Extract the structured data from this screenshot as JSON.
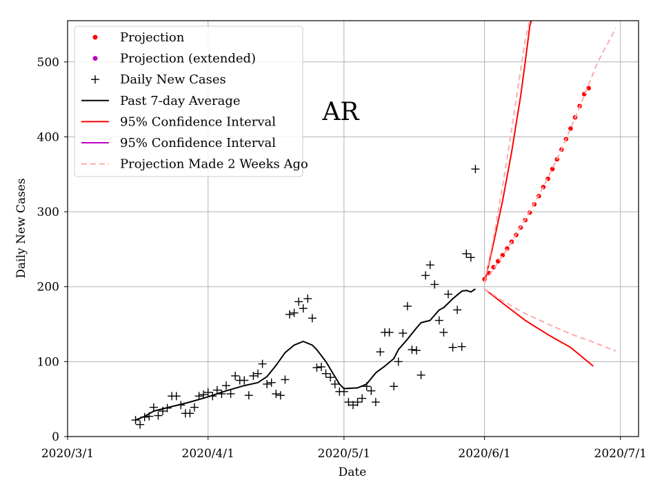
{
  "chart_data": {
    "type": "line",
    "annotation": "AR",
    "xlabel": "Date",
    "ylabel": "Daily New Cases",
    "x_ticks": [
      "2020/3/1",
      "2020/4/1",
      "2020/5/1",
      "2020/6/1",
      "2020/7/1"
    ],
    "y_ticks": [
      0,
      100,
      200,
      300,
      400,
      500
    ],
    "xlim": [
      "2020-03-01",
      "2020-07-05"
    ],
    "ylim": [
      0,
      555
    ],
    "grid": true,
    "legend_position": "top-left",
    "legend": [
      {
        "label": "Projection",
        "marker": "dot",
        "color": "#ff0000"
      },
      {
        "label": "Projection (extended)",
        "marker": "dot",
        "color": "#bf00bf"
      },
      {
        "label": "Daily New Cases",
        "marker": "plus",
        "color": "#000000"
      },
      {
        "label": "Past 7-day Average",
        "marker": "line",
        "color": "#000000"
      },
      {
        "label": "95% Confidence Interval",
        "marker": "line",
        "color": "#ff0000"
      },
      {
        "label": "95% Confidence Interval",
        "marker": "line",
        "color": "#bf00bf"
      },
      {
        "label": "Projection Made 2 Weeks Ago",
        "marker": "dashed",
        "color": "#ffaaaa"
      }
    ],
    "series": [
      {
        "name": "Daily New Cases",
        "style": "plus",
        "color": "#000000",
        "points": [
          [
            "2020-03-16",
            22
          ],
          [
            "2020-03-17",
            16
          ],
          [
            "2020-03-18",
            26
          ],
          [
            "2020-03-19",
            27
          ],
          [
            "2020-03-20",
            39
          ],
          [
            "2020-03-21",
            28
          ],
          [
            "2020-03-22",
            34
          ],
          [
            "2020-03-23",
            38
          ],
          [
            "2020-03-24",
            54
          ],
          [
            "2020-03-25",
            54
          ],
          [
            "2020-03-26",
            42
          ],
          [
            "2020-03-27",
            31
          ],
          [
            "2020-03-28",
            31
          ],
          [
            "2020-03-29",
            39
          ],
          [
            "2020-03-30",
            54
          ],
          [
            "2020-03-31",
            56
          ],
          [
            "2020-04-01",
            59
          ],
          [
            "2020-04-02",
            54
          ],
          [
            "2020-04-03",
            62
          ],
          [
            "2020-04-04",
            57
          ],
          [
            "2020-04-05",
            68
          ],
          [
            "2020-04-06",
            57
          ],
          [
            "2020-04-07",
            81
          ],
          [
            "2020-04-08",
            75
          ],
          [
            "2020-04-09",
            75
          ],
          [
            "2020-04-10",
            55
          ],
          [
            "2020-04-11",
            81
          ],
          [
            "2020-04-12",
            84
          ],
          [
            "2020-04-13",
            97
          ],
          [
            "2020-04-14",
            70
          ],
          [
            "2020-04-15",
            72
          ],
          [
            "2020-04-16",
            57
          ],
          [
            "2020-04-17",
            55
          ],
          [
            "2020-04-18",
            76
          ],
          [
            "2020-04-19",
            163
          ],
          [
            "2020-04-20",
            165
          ],
          [
            "2020-04-21",
            180
          ],
          [
            "2020-04-22",
            171
          ],
          [
            "2020-04-23",
            184
          ],
          [
            "2020-04-24",
            158
          ],
          [
            "2020-04-25",
            92
          ],
          [
            "2020-04-26",
            93
          ],
          [
            "2020-04-27",
            84
          ],
          [
            "2020-04-28",
            79
          ],
          [
            "2020-04-29",
            70
          ],
          [
            "2020-04-30",
            60
          ],
          [
            "2020-05-01",
            60
          ],
          [
            "2020-05-02",
            46
          ],
          [
            "2020-05-03",
            42
          ],
          [
            "2020-05-04",
            46
          ],
          [
            "2020-05-05",
            51
          ],
          [
            "2020-05-06",
            67
          ],
          [
            "2020-05-07",
            61
          ],
          [
            "2020-05-08",
            46
          ],
          [
            "2020-05-09",
            113
          ],
          [
            "2020-05-10",
            139
          ],
          [
            "2020-05-11",
            139
          ],
          [
            "2020-05-12",
            67
          ],
          [
            "2020-05-13",
            100
          ],
          [
            "2020-05-14",
            138
          ],
          [
            "2020-05-15",
            174
          ],
          [
            "2020-05-16",
            116
          ],
          [
            "2020-05-17",
            115
          ],
          [
            "2020-05-18",
            82
          ],
          [
            "2020-05-19",
            215
          ],
          [
            "2020-05-20",
            229
          ],
          [
            "2020-05-21",
            203
          ],
          [
            "2020-05-22",
            155
          ],
          [
            "2020-05-23",
            139
          ],
          [
            "2020-05-24",
            190
          ],
          [
            "2020-05-25",
            119
          ],
          [
            "2020-05-26",
            169
          ],
          [
            "2020-05-27",
            120
          ],
          [
            "2020-05-28",
            244
          ],
          [
            "2020-05-29",
            239
          ],
          [
            "2020-05-30",
            357
          ]
        ]
      },
      {
        "name": "Past 7-day Average",
        "style": "line",
        "color": "#000000",
        "points": [
          [
            "2020-03-16",
            22
          ],
          [
            "2020-03-18",
            27
          ],
          [
            "2020-03-20",
            34
          ],
          [
            "2020-03-24",
            40
          ],
          [
            "2020-03-28",
            46
          ],
          [
            "2020-04-01",
            53
          ],
          [
            "2020-04-05",
            61
          ],
          [
            "2020-04-09",
            68
          ],
          [
            "2020-04-12",
            72
          ],
          [
            "2020-04-14",
            80
          ],
          [
            "2020-04-16",
            95
          ],
          [
            "2020-04-18",
            112
          ],
          [
            "2020-04-20",
            122
          ],
          [
            "2020-04-22",
            127
          ],
          [
            "2020-04-24",
            122
          ],
          [
            "2020-04-25",
            116
          ],
          [
            "2020-04-27",
            100
          ],
          [
            "2020-04-29",
            80
          ],
          [
            "2020-04-30",
            70
          ],
          [
            "2020-05-01",
            64
          ],
          [
            "2020-05-04",
            65
          ],
          [
            "2020-05-06",
            70
          ],
          [
            "2020-05-08",
            85
          ],
          [
            "2020-05-10",
            94
          ],
          [
            "2020-05-12",
            104
          ],
          [
            "2020-05-13",
            116
          ],
          [
            "2020-05-15",
            130
          ],
          [
            "2020-05-17",
            145
          ],
          [
            "2020-05-18",
            152
          ],
          [
            "2020-05-20",
            155
          ],
          [
            "2020-05-21",
            162
          ],
          [
            "2020-05-22",
            169
          ],
          [
            "2020-05-23",
            172
          ],
          [
            "2020-05-24",
            178
          ],
          [
            "2020-05-25",
            184
          ],
          [
            "2020-05-27",
            194
          ],
          [
            "2020-05-28",
            195
          ],
          [
            "2020-05-29",
            193
          ],
          [
            "2020-05-30",
            197
          ]
        ]
      },
      {
        "name": "Projection",
        "style": "dots",
        "color": "#ff0000",
        "points": [
          [
            "2020-06-01",
            210
          ],
          [
            "2020-06-02",
            218
          ],
          [
            "2020-06-03",
            226
          ],
          [
            "2020-06-04",
            234
          ],
          [
            "2020-06-05",
            242
          ],
          [
            "2020-06-06",
            251
          ],
          [
            "2020-06-07",
            260
          ],
          [
            "2020-06-08",
            269
          ],
          [
            "2020-06-09",
            279
          ],
          [
            "2020-06-10",
            289
          ],
          [
            "2020-06-11",
            299
          ],
          [
            "2020-06-12",
            310
          ],
          [
            "2020-06-13",
            321
          ],
          [
            "2020-06-14",
            333
          ],
          [
            "2020-06-15",
            344
          ],
          [
            "2020-06-16",
            357
          ],
          [
            "2020-06-17",
            370
          ],
          [
            "2020-06-18",
            383
          ],
          [
            "2020-06-19",
            397
          ],
          [
            "2020-06-20",
            411
          ],
          [
            "2020-06-21",
            426
          ],
          [
            "2020-06-22",
            441
          ],
          [
            "2020-06-23",
            457
          ],
          [
            "2020-06-24",
            465
          ]
        ]
      },
      {
        "name": "95% Confidence Interval",
        "style": "line",
        "color": "#ff0000",
        "points": [
          [
            "2020-06-01",
            205
          ],
          [
            "2020-06-03",
            258
          ],
          [
            "2020-06-05",
            315
          ],
          [
            "2020-06-07",
            380
          ],
          [
            "2020-06-09",
            455
          ],
          [
            "2020-06-10",
            500
          ],
          [
            "2020-06-11",
            548
          ],
          [
            "2020-06-11T08:00",
            555
          ]
        ]
      },
      {
        "name": "95% Confidence Interval",
        "style": "line",
        "color": "#ff0000",
        "points": [
          [
            "2020-06-01",
            197
          ],
          [
            "2020-06-05",
            178
          ],
          [
            "2020-06-10",
            155
          ],
          [
            "2020-06-15",
            136
          ],
          [
            "2020-06-20",
            119
          ],
          [
            "2020-06-25",
            94
          ]
        ]
      },
      {
        "name": "Projection Made 2 Weeks Ago",
        "style": "dashed",
        "color": "#ffaaaa",
        "points": [
          [
            "2020-06-01",
            205
          ],
          [
            "2020-06-03",
            265
          ],
          [
            "2020-06-05",
            335
          ],
          [
            "2020-06-07",
            410
          ],
          [
            "2020-06-09",
            490
          ],
          [
            "2020-06-10",
            530
          ],
          [
            "2020-06-11",
            555
          ]
        ]
      },
      {
        "name": "Projection Made 2 Weeks Ago",
        "style": "dashed",
        "color": "#ffaaaa",
        "points": [
          [
            "2020-06-01",
            197
          ],
          [
            "2020-06-05",
            181
          ],
          [
            "2020-06-10",
            164
          ],
          [
            "2020-06-15",
            150
          ],
          [
            "2020-06-20",
            137
          ],
          [
            "2020-06-25",
            126
          ],
          [
            "2020-06-30",
            114
          ]
        ]
      },
      {
        "name": "Projection Made 2 Weeks Ago",
        "style": "dashed",
        "color": "#ffaaaa",
        "points": [
          [
            "2020-06-02",
            215
          ],
          [
            "2020-06-06",
            250
          ],
          [
            "2020-06-10",
            290
          ],
          [
            "2020-06-14",
            333
          ],
          [
            "2020-06-18",
            383
          ],
          [
            "2020-06-22",
            440
          ],
          [
            "2020-06-26",
            500
          ],
          [
            "2020-06-30",
            545
          ]
        ]
      }
    ]
  }
}
